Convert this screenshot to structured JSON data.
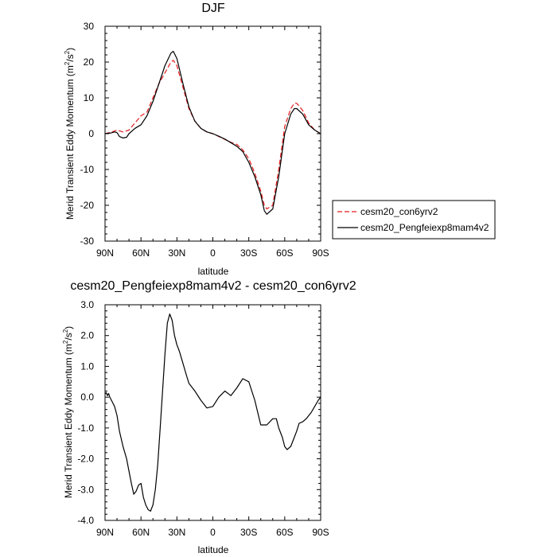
{
  "chart_data": [
    {
      "type": "line",
      "title": "DJF",
      "xlabel": "latitude",
      "ylabel": "Merid Transient Eddy Momentum (m²/s²)",
      "ylabel_main": "Merid Transient Eddy Momentum (m",
      "ylabel_units_inner": "/s",
      "ylabel_sup": "2",
      "ylabel_close": ")",
      "xlim": [
        90,
        -90
      ],
      "ylim": [
        -30,
        30
      ],
      "x_ticks": [
        {
          "v": 90,
          "label": "90N"
        },
        {
          "v": 60,
          "label": "60N"
        },
        {
          "v": 30,
          "label": "30N"
        },
        {
          "v": 0,
          "label": "0"
        },
        {
          "v": -30,
          "label": "30S"
        },
        {
          "v": -60,
          "label": "60S"
        },
        {
          "v": -90,
          "label": "90S"
        }
      ],
      "y_ticks": [
        {
          "v": 30,
          "label": "30"
        },
        {
          "v": 20,
          "label": "20"
        },
        {
          "v": 10,
          "label": "10"
        },
        {
          "v": 0,
          "label": "0"
        },
        {
          "v": -10,
          "label": "-10"
        },
        {
          "v": -20,
          "label": "-20"
        },
        {
          "v": -30,
          "label": "-30"
        }
      ],
      "legend_position": "right",
      "series": [
        {
          "name": "cesm20_con6yrv2",
          "color": "#e31a1c",
          "dash": "dashed",
          "x": [
            90,
            85,
            80,
            75,
            70,
            65,
            60,
            55,
            50,
            45,
            40,
            35,
            33,
            30,
            25,
            20,
            15,
            10,
            5,
            0,
            -5,
            -10,
            -15,
            -20,
            -25,
            -30,
            -35,
            -40,
            -43,
            -45,
            -50,
            -55,
            -60,
            -65,
            -68,
            -70,
            -75,
            -80,
            -85,
            -90
          ],
          "values": [
            0,
            0.4,
            1.0,
            0.5,
            1.0,
            3.0,
            5.0,
            6.0,
            10.0,
            14.0,
            17.0,
            20.0,
            20.5,
            19.0,
            13.0,
            7.0,
            3.5,
            1.5,
            0.5,
            0,
            -0.8,
            -1.6,
            -2.4,
            -3.0,
            -4.5,
            -7.0,
            -11.0,
            -16.0,
            -20.0,
            -21.0,
            -20.0,
            -10.0,
            2.0,
            7.0,
            8.5,
            8.5,
            6.5,
            3.0,
            1.0,
            0
          ]
        },
        {
          "name": "cesm20_Pengfeiexp8mam4v2",
          "color": "#000000",
          "dash": "solid",
          "x": [
            90,
            85,
            82,
            80,
            78,
            75,
            72,
            70,
            65,
            60,
            55,
            50,
            45,
            40,
            35,
            33,
            30,
            25,
            20,
            15,
            10,
            5,
            0,
            -5,
            -10,
            -15,
            -20,
            -25,
            -30,
            -35,
            -40,
            -43,
            -45,
            -50,
            -55,
            -60,
            -65,
            -68,
            -70,
            -75,
            -80,
            -85,
            -90
          ],
          "values": [
            0,
            0.2,
            0.5,
            0.3,
            -0.8,
            -1.2,
            -1.0,
            0,
            1.5,
            2.5,
            5.0,
            9.0,
            14.0,
            19.0,
            22.5,
            23.0,
            21.0,
            14.0,
            7.5,
            3.5,
            1.5,
            0.5,
            0,
            -0.7,
            -1.5,
            -2.5,
            -3.5,
            -5.0,
            -8.0,
            -12.0,
            -17.0,
            -21.5,
            -22.5,
            -21.0,
            -12.0,
            0,
            5.5,
            7.0,
            7.0,
            5.5,
            2.5,
            1.0,
            0
          ]
        }
      ]
    },
    {
      "type": "line",
      "title": "cesm20_Pengfeiexp8mam4v2 - cesm20_con6yrv2",
      "xlabel": "latitude",
      "ylabel": "Merid Transient Eddy Momentum (m²/s²)",
      "ylabel_main": "Merid Transient Eddy Momentum (m",
      "ylabel_units_inner": "/s",
      "ylabel_sup": "2",
      "ylabel_close": ")",
      "xlim": [
        90,
        -90
      ],
      "ylim": [
        -4,
        3
      ],
      "x_ticks": [
        {
          "v": 90,
          "label": "90N"
        },
        {
          "v": 60,
          "label": "60N"
        },
        {
          "v": 30,
          "label": "30N"
        },
        {
          "v": 0,
          "label": "0"
        },
        {
          "v": -30,
          "label": "30S"
        },
        {
          "v": -60,
          "label": "60S"
        },
        {
          "v": -90,
          "label": "90S"
        }
      ],
      "y_ticks": [
        {
          "v": 3,
          "label": "3.0"
        },
        {
          "v": 2,
          "label": "2.0"
        },
        {
          "v": 1,
          "label": "1.0"
        },
        {
          "v": 0,
          "label": "0.0"
        },
        {
          "v": -1,
          "label": "-1.0"
        },
        {
          "v": -2,
          "label": "-2.0"
        },
        {
          "v": -3,
          "label": "-3.0"
        },
        {
          "v": -4,
          "label": "-4.0"
        }
      ],
      "series": [
        {
          "color": "#000000",
          "dash": "solid",
          "x": [
            90,
            89,
            88,
            87,
            86,
            84,
            82,
            80,
            78,
            75,
            72,
            70,
            68,
            66,
            64,
            62,
            60,
            58,
            56,
            54,
            52,
            50,
            48,
            46,
            44,
            42,
            40,
            38,
            36,
            34,
            32,
            30,
            28,
            25,
            22,
            20,
            15,
            10,
            5,
            0,
            -5,
            -10,
            -15,
            -20,
            -25,
            -30,
            -35,
            -40,
            -45,
            -50,
            -53,
            -55,
            -58,
            -60,
            -62,
            -65,
            -68,
            -70,
            -72,
            -75,
            -78,
            -80,
            -82,
            -85,
            -88,
            -90
          ],
          "values": [
            0.1,
            0.15,
            0.05,
            0.12,
            0,
            -0.15,
            -0.3,
            -0.6,
            -1.1,
            -1.6,
            -2.0,
            -2.4,
            -2.8,
            -3.15,
            -3.05,
            -2.85,
            -2.8,
            -3.25,
            -3.5,
            -3.65,
            -3.7,
            -3.5,
            -3.0,
            -2.2,
            -1.0,
            0.2,
            1.4,
            2.4,
            2.7,
            2.5,
            2.0,
            1.7,
            1.5,
            1.1,
            0.7,
            0.45,
            0.2,
            -0.1,
            -0.35,
            -0.3,
            0.0,
            0.2,
            0.05,
            0.3,
            0.6,
            0.5,
            -0.1,
            -0.9,
            -0.9,
            -0.7,
            -0.7,
            -1.0,
            -1.3,
            -1.6,
            -1.7,
            -1.6,
            -1.3,
            -1.1,
            -0.85,
            -0.8,
            -0.7,
            -0.6,
            -0.5,
            -0.3,
            -0.1,
            0
          ]
        }
      ]
    }
  ]
}
